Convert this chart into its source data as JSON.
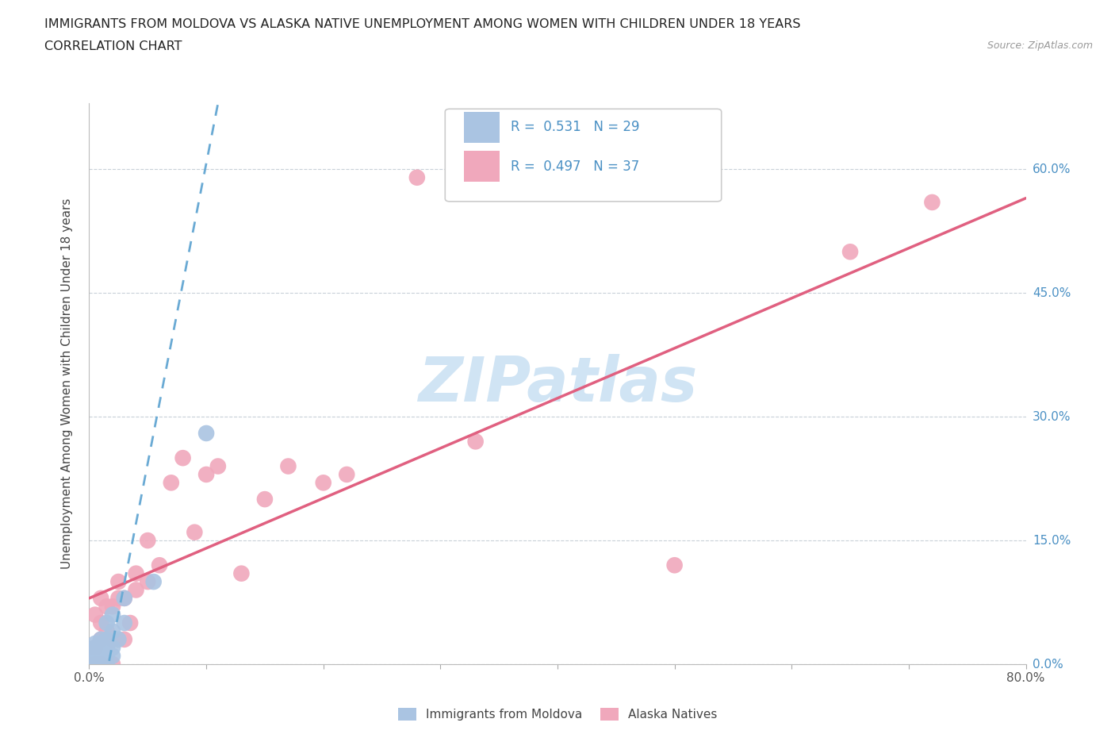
{
  "title_line1": "IMMIGRANTS FROM MOLDOVA VS ALASKA NATIVE UNEMPLOYMENT AMONG WOMEN WITH CHILDREN UNDER 18 YEARS",
  "title_line2": "CORRELATION CHART",
  "source": "Source: ZipAtlas.com",
  "ylabel": "Unemployment Among Women with Children Under 18 years",
  "xlim": [
    0.0,
    0.8
  ],
  "ylim": [
    0.0,
    0.68
  ],
  "xtick_positions": [
    0.0,
    0.1,
    0.2,
    0.3,
    0.4,
    0.5,
    0.6,
    0.7,
    0.8
  ],
  "xtick_labels": [
    "0.0%",
    "",
    "",
    "",
    "",
    "",
    "",
    "",
    "80.0%"
  ],
  "ytick_positions": [
    0.0,
    0.15,
    0.3,
    0.45,
    0.6
  ],
  "ytick_labels": [
    "0.0%",
    "15.0%",
    "30.0%",
    "45.0%",
    "60.0%"
  ],
  "blue_R": 0.531,
  "blue_N": 29,
  "pink_R": 0.497,
  "pink_N": 37,
  "blue_color": "#aac4e2",
  "pink_color": "#f0a8bc",
  "blue_line_color": "#6aaad4",
  "pink_line_color": "#e06080",
  "watermark_text": "ZIPatlas",
  "watermark_color": "#d0e4f4",
  "legend_label_blue": "Immigrants from Moldova",
  "legend_label_pink": "Alaska Natives",
  "right_label_color": "#4a90c4",
  "blue_scatter_x": [
    0.005,
    0.005,
    0.005,
    0.005,
    0.005,
    0.005,
    0.005,
    0.005,
    0.01,
    0.01,
    0.01,
    0.01,
    0.01,
    0.01,
    0.01,
    0.015,
    0.015,
    0.015,
    0.015,
    0.015,
    0.02,
    0.02,
    0.02,
    0.02,
    0.025,
    0.03,
    0.03,
    0.055,
    0.1
  ],
  "blue_scatter_y": [
    0.0,
    0.0,
    0.005,
    0.01,
    0.01,
    0.015,
    0.02,
    0.025,
    0.0,
    0.005,
    0.01,
    0.015,
    0.02,
    0.025,
    0.03,
    0.0,
    0.01,
    0.02,
    0.03,
    0.05,
    0.01,
    0.02,
    0.04,
    0.06,
    0.03,
    0.05,
    0.08,
    0.1,
    0.28
  ],
  "pink_scatter_x": [
    0.005,
    0.005,
    0.005,
    0.01,
    0.01,
    0.01,
    0.01,
    0.015,
    0.015,
    0.02,
    0.02,
    0.02,
    0.025,
    0.025,
    0.03,
    0.03,
    0.035,
    0.04,
    0.04,
    0.05,
    0.05,
    0.06,
    0.07,
    0.08,
    0.09,
    0.1,
    0.11,
    0.13,
    0.15,
    0.17,
    0.2,
    0.22,
    0.28,
    0.33,
    0.5,
    0.65,
    0.72
  ],
  "pink_scatter_y": [
    0.0,
    0.02,
    0.06,
    0.0,
    0.03,
    0.05,
    0.08,
    0.04,
    0.07,
    0.0,
    0.03,
    0.07,
    0.08,
    0.1,
    0.03,
    0.08,
    0.05,
    0.09,
    0.11,
    0.1,
    0.15,
    0.12,
    0.22,
    0.25,
    0.16,
    0.23,
    0.24,
    0.11,
    0.2,
    0.24,
    0.22,
    0.23,
    0.59,
    0.27,
    0.12,
    0.5,
    0.56
  ],
  "pink_line_x": [
    0.0,
    0.8
  ],
  "pink_line_y": [
    0.08,
    0.565
  ],
  "blue_line_x": [
    0.0,
    0.11
  ],
  "blue_line_y": [
    -0.12,
    0.68
  ]
}
